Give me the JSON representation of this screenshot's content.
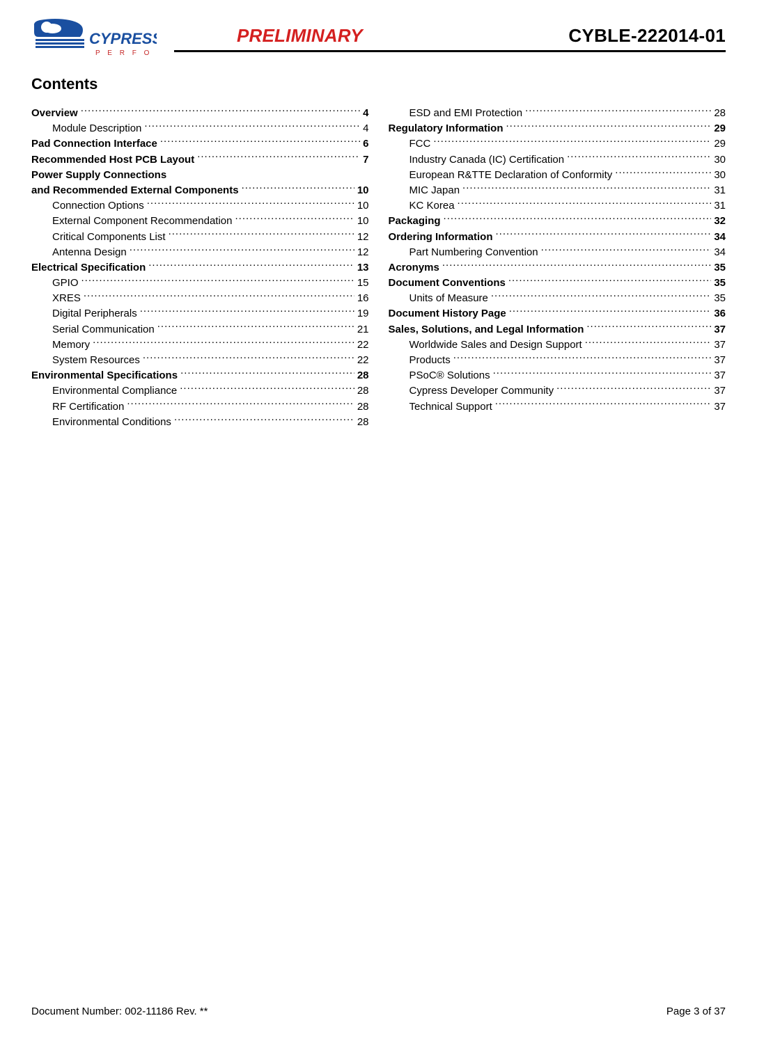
{
  "header": {
    "preliminary": "PRELIMINARY",
    "part_number": "CYBLE-222014-01",
    "logo_alt": "Cypress Perform"
  },
  "contents_heading": "Contents",
  "footer": {
    "docnum": "Document Number: 002-11186 Rev. **",
    "page": "Page 3 of 37"
  },
  "columns": [
    [
      {
        "label": "Overview",
        "page": "4",
        "bold": true,
        "sub": false
      },
      {
        "label": "Module Description",
        "page": "4",
        "bold": false,
        "sub": true
      },
      {
        "label": "Pad Connection Interface",
        "page": "6",
        "bold": true,
        "sub": false
      },
      {
        "label": "Recommended Host PCB Layout",
        "page": "7",
        "bold": true,
        "sub": false
      },
      {
        "label": "Power Supply Connections",
        "page": "",
        "bold": true,
        "sub": false,
        "nopage": true
      },
      {
        "label": "and Recommended External Components",
        "page": "10",
        "bold": true,
        "sub": false
      },
      {
        "label": "Connection Options",
        "page": "10",
        "bold": false,
        "sub": true
      },
      {
        "label": "External Component Recommendation",
        "page": "10",
        "bold": false,
        "sub": true
      },
      {
        "label": "Critical Components List",
        "page": "12",
        "bold": false,
        "sub": true
      },
      {
        "label": "Antenna Design",
        "page": "12",
        "bold": false,
        "sub": true
      },
      {
        "label": "Electrical Specification",
        "page": "13",
        "bold": true,
        "sub": false
      },
      {
        "label": "GPIO",
        "page": "15",
        "bold": false,
        "sub": true
      },
      {
        "label": "XRES",
        "page": "16",
        "bold": false,
        "sub": true
      },
      {
        "label": "Digital Peripherals",
        "page": "19",
        "bold": false,
        "sub": true
      },
      {
        "label": "Serial Communication",
        "page": "21",
        "bold": false,
        "sub": true
      },
      {
        "label": "Memory",
        "page": "22",
        "bold": false,
        "sub": true
      },
      {
        "label": "System Resources",
        "page": "22",
        "bold": false,
        "sub": true
      },
      {
        "label": "Environmental Specifications",
        "page": "28",
        "bold": true,
        "sub": false
      },
      {
        "label": "Environmental Compliance",
        "page": "28",
        "bold": false,
        "sub": true
      },
      {
        "label": "RF Certification",
        "page": "28",
        "bold": false,
        "sub": true
      },
      {
        "label": "Environmental Conditions",
        "page": "28",
        "bold": false,
        "sub": true
      }
    ],
    [
      {
        "label": "ESD and EMI Protection",
        "page": "28",
        "bold": false,
        "sub": true
      },
      {
        "label": "Regulatory Information",
        "page": "29",
        "bold": true,
        "sub": false
      },
      {
        "label": "FCC",
        "page": "29",
        "bold": false,
        "sub": true
      },
      {
        "label": "Industry Canada (IC) Certification",
        "page": "30",
        "bold": false,
        "sub": true
      },
      {
        "label": "European R&TTE Declaration of Conformity",
        "page": "30",
        "bold": false,
        "sub": true
      },
      {
        "label": "MIC Japan",
        "page": "31",
        "bold": false,
        "sub": true
      },
      {
        "label": "KC Korea",
        "page": "31",
        "bold": false,
        "sub": true
      },
      {
        "label": "Packaging",
        "page": "32",
        "bold": true,
        "sub": false
      },
      {
        "label": "Ordering Information",
        "page": "34",
        "bold": true,
        "sub": false
      },
      {
        "label": "Part Numbering Convention",
        "page": "34",
        "bold": false,
        "sub": true
      },
      {
        "label": "Acronyms",
        "page": "35",
        "bold": true,
        "sub": false
      },
      {
        "label": "Document Conventions",
        "page": "35",
        "bold": true,
        "sub": false
      },
      {
        "label": "Units of Measure",
        "page": "35",
        "bold": false,
        "sub": true
      },
      {
        "label": "Document History Page",
        "page": "36",
        "bold": true,
        "sub": false
      },
      {
        "label": "Sales, Solutions, and Legal Information",
        "page": "37",
        "bold": true,
        "sub": false
      },
      {
        "label": "Worldwide Sales and Design Support",
        "page": "37",
        "bold": false,
        "sub": true
      },
      {
        "label": "Products",
        "page": "37",
        "bold": false,
        "sub": true
      },
      {
        "label": "PSoC® Solutions",
        "page": "37",
        "bold": false,
        "sub": true
      },
      {
        "label": "Cypress Developer Community",
        "page": "37",
        "bold": false,
        "sub": true
      },
      {
        "label": "Technical Support",
        "page": "37",
        "bold": false,
        "sub": true
      }
    ]
  ]
}
